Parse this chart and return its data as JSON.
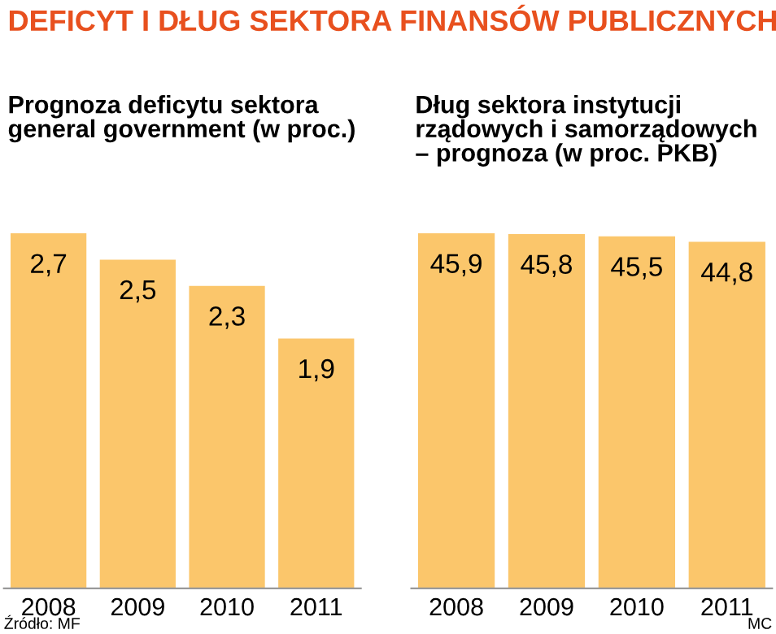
{
  "chart_data": [
    {
      "type": "bar",
      "title": "Prognoza deficytu sektora\ngeneral government (w proc.)",
      "categories": [
        "2008",
        "2009",
        "2010",
        "2011"
      ],
      "values": [
        2.7,
        2.5,
        2.3,
        1.9
      ],
      "value_labels": [
        "2,7",
        "2,5",
        "2,3",
        "1,9"
      ],
      "color": "#fbc66b",
      "grid": false,
      "legend": false,
      "annotations": [
        "DEFICYT I DŁUG SEKTORA FINANSÓW PUBLICZNYCH",
        "Źródło: MF"
      ]
    },
    {
      "type": "bar",
      "title": "Dług sektora instytucji\nrządowych i samorządowych\n– prognoza (w proc. PKB)",
      "categories": [
        "2008",
        "2009",
        "2010",
        "2011"
      ],
      "values": [
        45.9,
        45.8,
        45.5,
        44.8
      ],
      "value_labels": [
        "45,9",
        "45,8",
        "45,5",
        "44,8"
      ],
      "color": "#fbc66b",
      "grid": false,
      "legend": false,
      "annotations": [
        "MC"
      ]
    }
  ]
}
